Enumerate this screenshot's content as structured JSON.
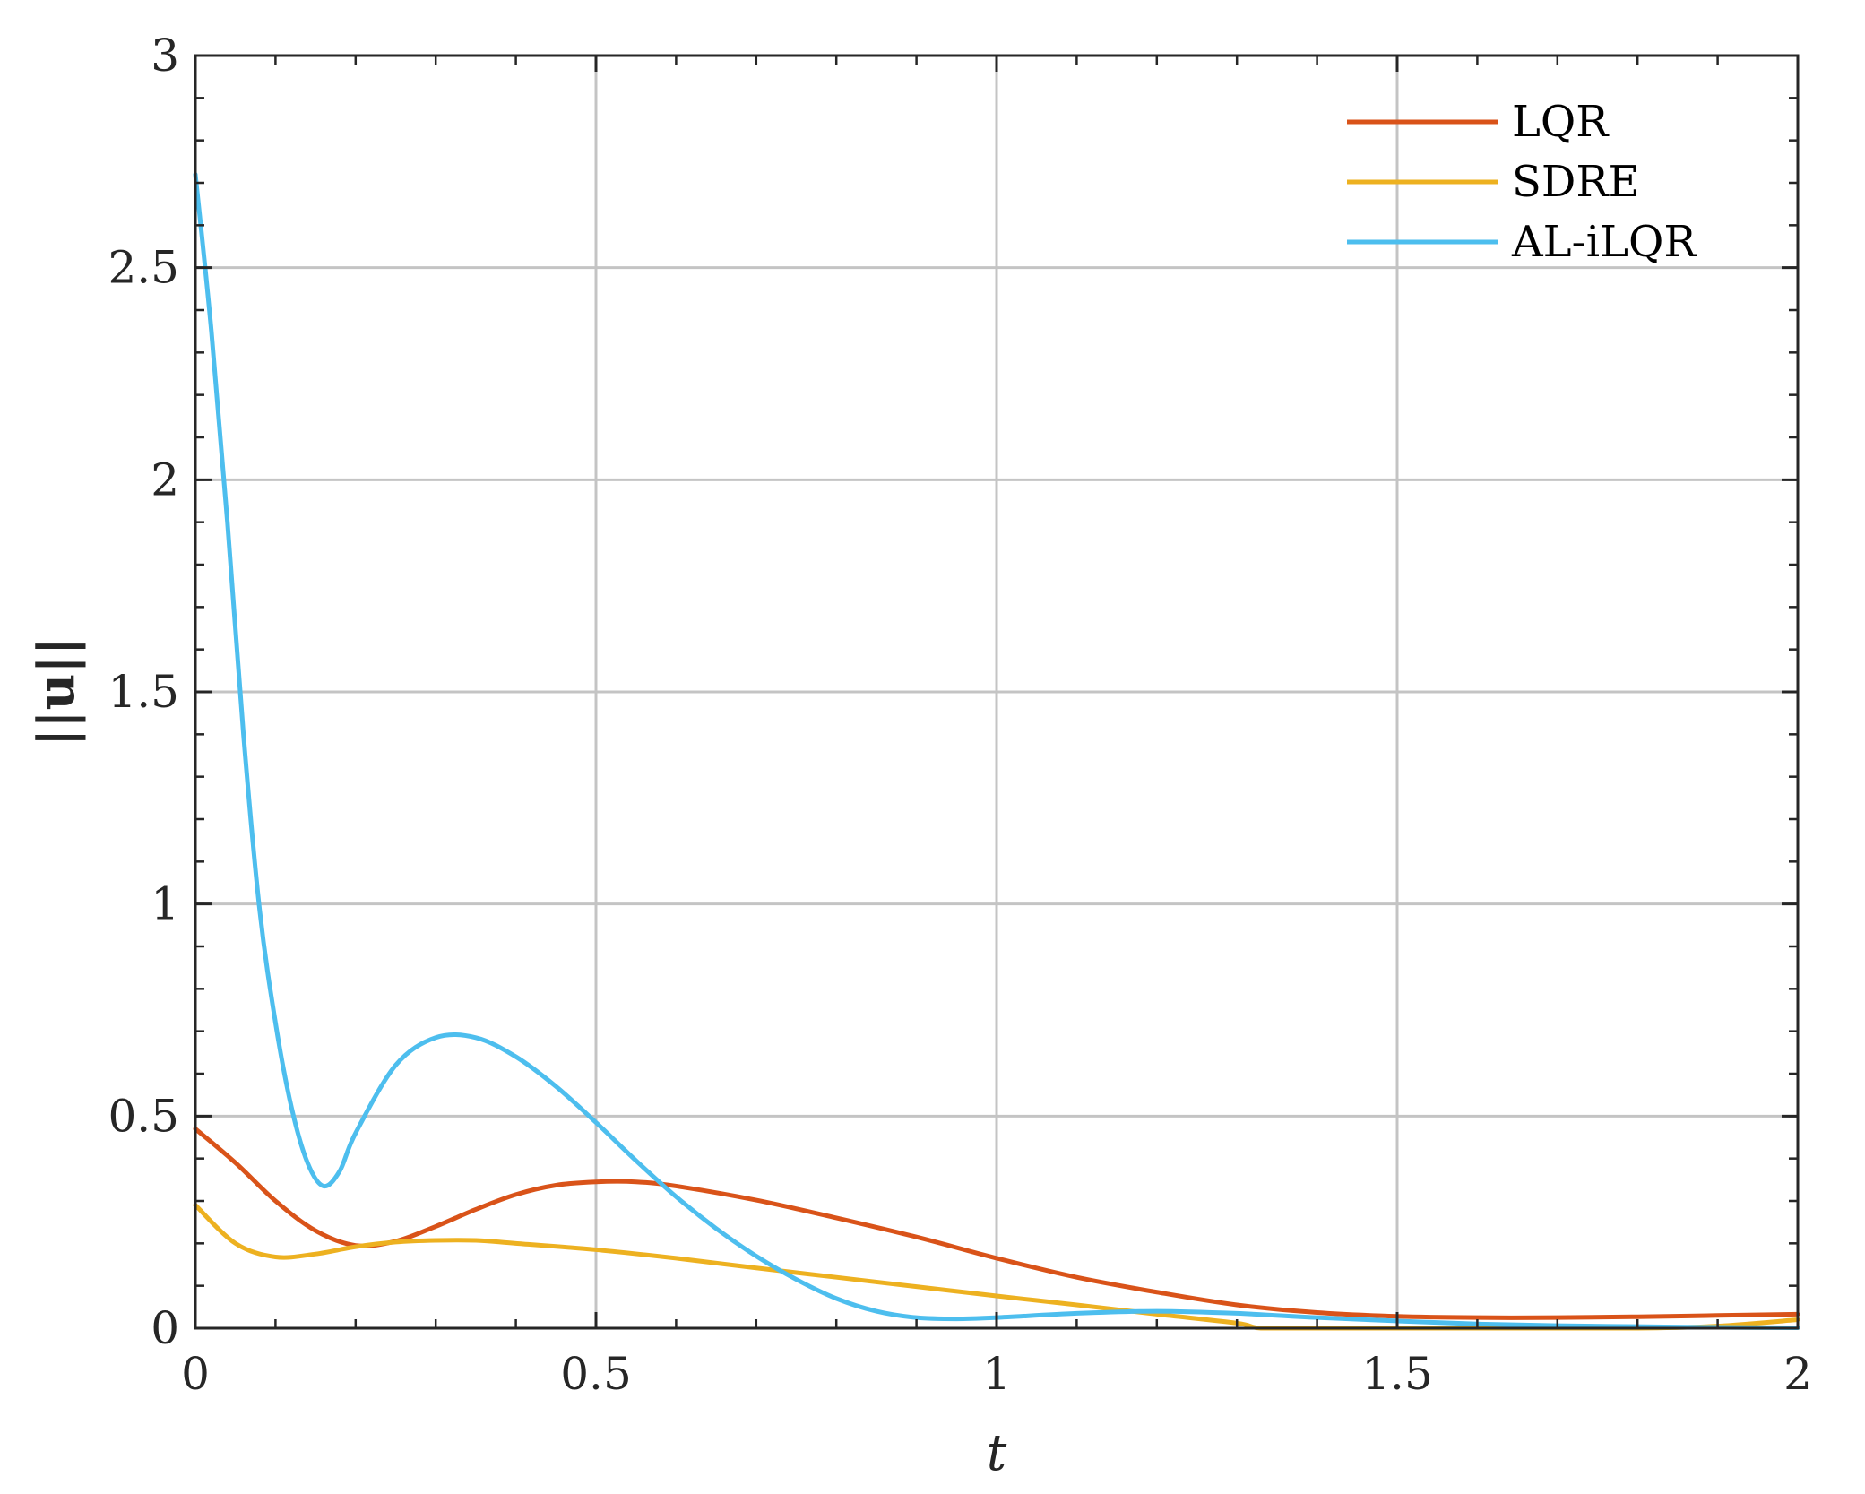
{
  "chart_data": {
    "type": "line",
    "xlabel": "t",
    "ylabel": "||u||",
    "xlim": [
      0,
      2
    ],
    "ylim": [
      0,
      3
    ],
    "xticks": [
      0,
      0.5,
      1,
      1.5,
      2
    ],
    "xtick_labels": [
      "0",
      "0.5",
      "1",
      "1.5",
      "2"
    ],
    "yticks": [
      0,
      0.5,
      1,
      1.5,
      2,
      2.5,
      3
    ],
    "ytick_labels": [
      "0",
      "0.5",
      "1",
      "1.5",
      "2",
      "2.5",
      "3"
    ],
    "grid": true,
    "legend_position": "top-right",
    "series": [
      {
        "name": "LQR",
        "color": "#D95319",
        "x": [
          0,
          0.05,
          0.1,
          0.15,
          0.2,
          0.25,
          0.3,
          0.35,
          0.4,
          0.45,
          0.5,
          0.55,
          0.6,
          0.7,
          0.8,
          0.9,
          1.0,
          1.1,
          1.2,
          1.3,
          1.4,
          1.5,
          1.6,
          1.7,
          1.8,
          1.9,
          2.0
        ],
        "y": [
          0.47,
          0.39,
          0.3,
          0.23,
          0.195,
          0.205,
          0.24,
          0.28,
          0.315,
          0.337,
          0.345,
          0.345,
          0.335,
          0.302,
          0.26,
          0.215,
          0.165,
          0.12,
          0.085,
          0.055,
          0.037,
          0.028,
          0.025,
          0.025,
          0.027,
          0.03,
          0.033
        ]
      },
      {
        "name": "SDRE",
        "color": "#EDB120",
        "x": [
          0,
          0.05,
          0.1,
          0.15,
          0.2,
          0.25,
          0.3,
          0.35,
          0.4,
          0.5,
          0.6,
          0.7,
          0.8,
          0.9,
          1.0,
          1.1,
          1.2,
          1.3,
          1.33,
          1.4,
          1.6,
          1.8,
          1.9,
          2.0
        ],
        "y": [
          0.29,
          0.2,
          0.168,
          0.175,
          0.192,
          0.203,
          0.207,
          0.207,
          0.2,
          0.185,
          0.165,
          0.142,
          0.12,
          0.098,
          0.076,
          0.055,
          0.033,
          0.012,
          0.0,
          0.0,
          0.0,
          0.0,
          0.005,
          0.02
        ]
      },
      {
        "name": "AL-iLQR",
        "color": "#4DBEEE",
        "x": [
          0,
          0.02,
          0.04,
          0.06,
          0.08,
          0.1,
          0.12,
          0.14,
          0.16,
          0.18,
          0.2,
          0.25,
          0.3,
          0.35,
          0.4,
          0.45,
          0.5,
          0.55,
          0.6,
          0.65,
          0.7,
          0.75,
          0.8,
          0.85,
          0.9,
          0.95,
          1.0,
          1.1,
          1.2,
          1.3,
          1.4,
          1.5,
          1.6,
          1.7,
          1.8,
          1.9,
          2.0
        ],
        "y": [
          2.72,
          2.35,
          1.9,
          1.4,
          0.99,
          0.72,
          0.52,
          0.39,
          0.335,
          0.37,
          0.46,
          0.62,
          0.685,
          0.685,
          0.64,
          0.57,
          0.485,
          0.395,
          0.31,
          0.235,
          0.17,
          0.115,
          0.07,
          0.04,
          0.025,
          0.022,
          0.025,
          0.035,
          0.04,
          0.035,
          0.025,
          0.017,
          0.01,
          0.006,
          0.004,
          0.002,
          0.001
        ]
      }
    ]
  }
}
